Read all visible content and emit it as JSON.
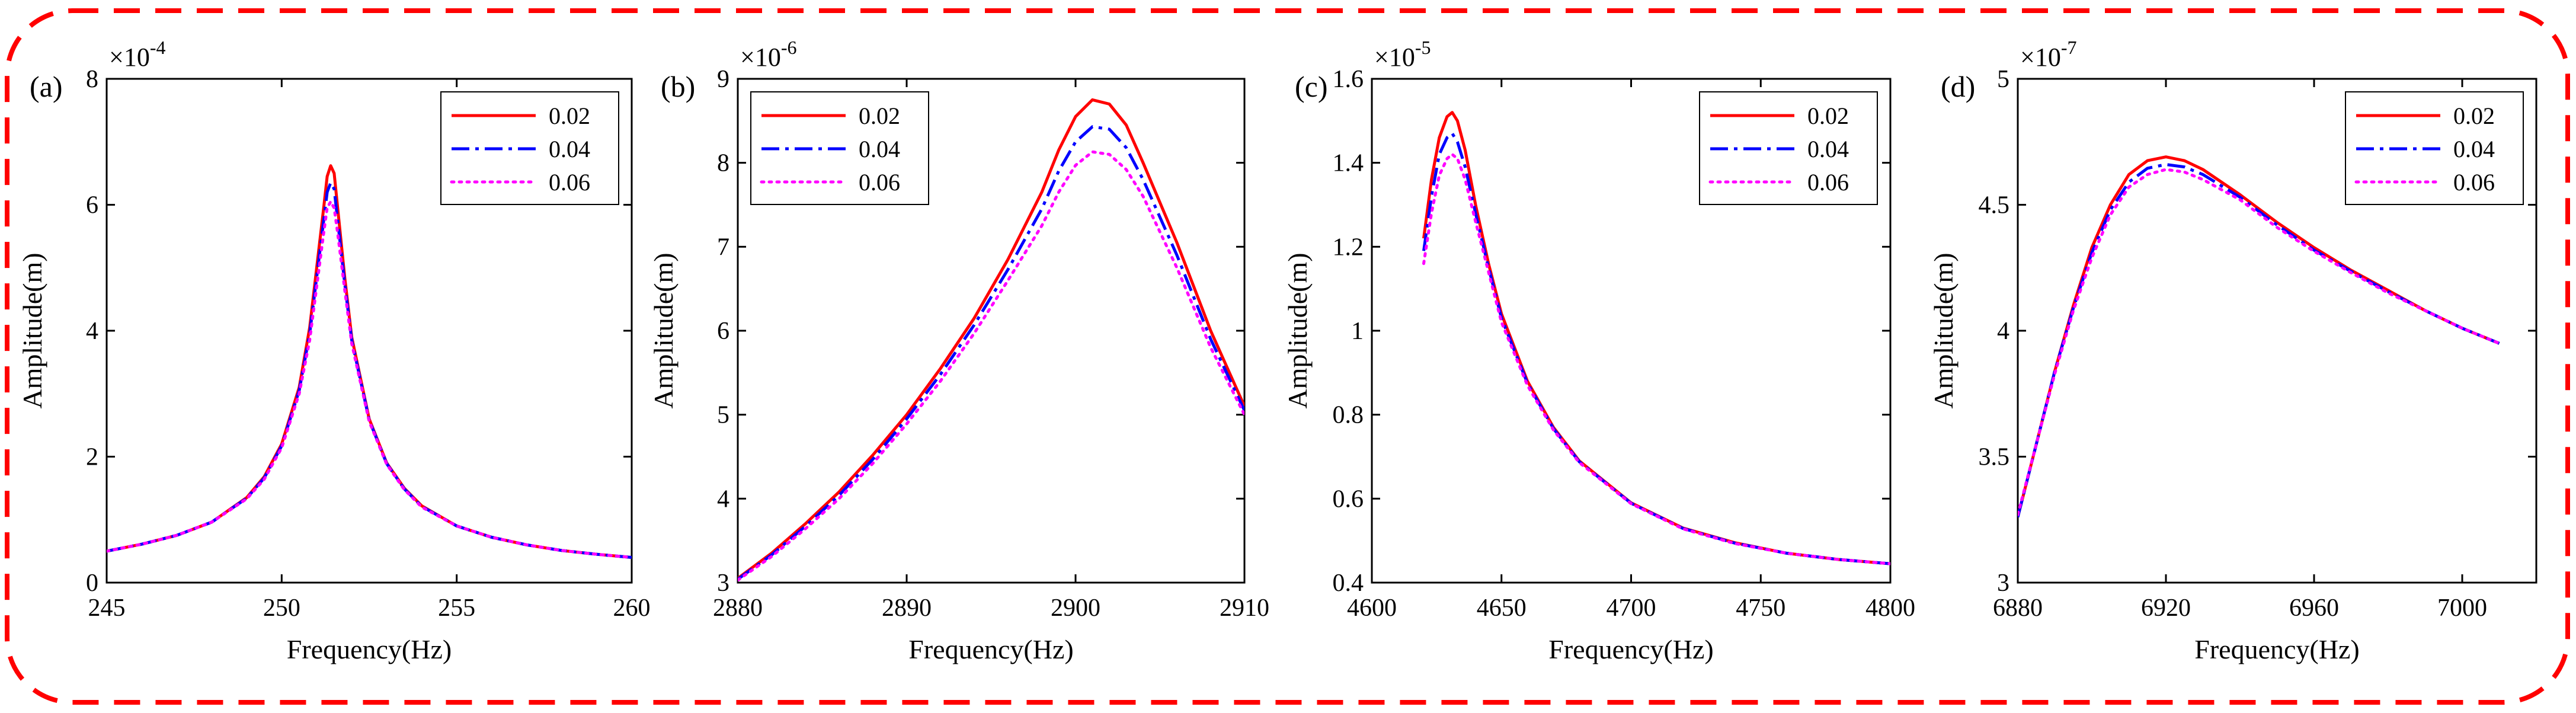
{
  "chart_data": [
    {
      "type": "line",
      "panel_label": "(a)",
      "xlabel": "Frequency(Hz)",
      "ylabel": "Amplitude(m)",
      "y_multiplier": "×10",
      "y_exponent": "-4",
      "xlim": [
        245,
        260
      ],
      "ylim": [
        0,
        8
      ],
      "xticks": [
        245,
        250,
        255,
        260
      ],
      "xtick_labels": [
        "245",
        "250",
        "255",
        "260"
      ],
      "yticks": [
        0,
        2,
        4,
        6,
        8
      ],
      "ytick_labels": [
        "0",
        "2",
        "4",
        "6",
        "8"
      ],
      "legend_position": "top-right",
      "series": [
        {
          "name": "0.02",
          "color": "#ff0000",
          "style": "solid",
          "x": [
            245,
            246,
            247,
            248,
            249,
            249.5,
            250,
            250.5,
            250.8,
            251,
            251.2,
            251.3,
            251.4,
            251.5,
            251.6,
            251.8,
            252,
            252.5,
            253,
            253.5,
            254,
            255,
            256,
            257,
            258,
            259,
            260
          ],
          "y": [
            0.5,
            0.61,
            0.75,
            0.96,
            1.35,
            1.68,
            2.2,
            3.1,
            4.05,
            5.0,
            5.95,
            6.45,
            6.62,
            6.5,
            5.95,
            4.85,
            3.9,
            2.6,
            1.9,
            1.5,
            1.22,
            0.9,
            0.72,
            0.6,
            0.51,
            0.45,
            0.4
          ]
        },
        {
          "name": "0.04",
          "color": "#0000ff",
          "style": "dashdot",
          "x": [
            245,
            246,
            247,
            248,
            249,
            249.5,
            250,
            250.5,
            250.8,
            251,
            251.2,
            251.3,
            251.4,
            251.5,
            251.6,
            251.8,
            252,
            252.5,
            253,
            253.5,
            254,
            255,
            256,
            257,
            258,
            259,
            260
          ],
          "y": [
            0.5,
            0.61,
            0.75,
            0.96,
            1.34,
            1.66,
            2.17,
            3.05,
            3.95,
            4.85,
            5.75,
            6.2,
            6.35,
            6.25,
            5.75,
            4.75,
            3.85,
            2.58,
            1.89,
            1.49,
            1.21,
            0.9,
            0.72,
            0.6,
            0.51,
            0.45,
            0.4
          ]
        },
        {
          "name": "0.06",
          "color": "#ff00ff",
          "style": "dotted",
          "x": [
            245,
            246,
            247,
            248,
            249,
            249.5,
            250,
            250.5,
            250.8,
            251,
            251.2,
            251.3,
            251.4,
            251.5,
            251.6,
            251.8,
            252,
            252.5,
            253,
            253.5,
            254,
            255,
            256,
            257,
            258,
            259,
            260
          ],
          "y": [
            0.5,
            0.61,
            0.75,
            0.96,
            1.33,
            1.64,
            2.14,
            3.0,
            3.85,
            4.7,
            5.55,
            5.95,
            6.05,
            5.95,
            5.55,
            4.65,
            3.8,
            2.56,
            1.88,
            1.48,
            1.2,
            0.9,
            0.72,
            0.6,
            0.51,
            0.45,
            0.4
          ]
        }
      ]
    },
    {
      "type": "line",
      "panel_label": "(b)",
      "xlabel": "Frequency(Hz)",
      "ylabel": "Amplitude(m)",
      "y_multiplier": "×10",
      "y_exponent": "-6",
      "xlim": [
        2880,
        2910
      ],
      "ylim": [
        3,
        9
      ],
      "xticks": [
        2880,
        2890,
        2900,
        2910
      ],
      "xtick_labels": [
        "2880",
        "2890",
        "2900",
        "2910"
      ],
      "yticks": [
        3,
        4,
        5,
        6,
        7,
        8,
        9
      ],
      "ytick_labels": [
        "3",
        "4",
        "5",
        "6",
        "7",
        "8",
        "9"
      ],
      "legend_position": "top-left",
      "series": [
        {
          "name": "0.02",
          "color": "#ff0000",
          "style": "solid",
          "x": [
            2880,
            2882,
            2884,
            2886,
            2888,
            2890,
            2892,
            2894,
            2896,
            2898,
            2899,
            2900,
            2901,
            2902,
            2903,
            2904,
            2906,
            2908,
            2910
          ],
          "y": [
            3.05,
            3.35,
            3.7,
            4.08,
            4.52,
            5.0,
            5.55,
            6.15,
            6.85,
            7.65,
            8.15,
            8.55,
            8.75,
            8.7,
            8.45,
            8.0,
            7.05,
            6.0,
            5.1
          ]
        },
        {
          "name": "0.04",
          "color": "#0000ff",
          "style": "dashdot",
          "x": [
            2880,
            2882,
            2884,
            2886,
            2888,
            2890,
            2892,
            2894,
            2896,
            2898,
            2899,
            2900,
            2901,
            2902,
            2903,
            2904,
            2906,
            2908,
            2910
          ],
          "y": [
            3.04,
            3.33,
            3.67,
            4.04,
            4.47,
            4.95,
            5.48,
            6.07,
            6.73,
            7.45,
            7.9,
            8.25,
            8.43,
            8.4,
            8.18,
            7.8,
            6.9,
            5.9,
            5.05
          ]
        },
        {
          "name": "0.06",
          "color": "#ff00ff",
          "style": "dotted",
          "x": [
            2880,
            2882,
            2884,
            2886,
            2888,
            2890,
            2892,
            2894,
            2896,
            2898,
            2899,
            2900,
            2901,
            2902,
            2903,
            2904,
            2906,
            2908,
            2910
          ],
          "y": [
            3.03,
            3.31,
            3.64,
            4.0,
            4.42,
            4.89,
            5.4,
            5.97,
            6.6,
            7.25,
            7.65,
            7.97,
            8.13,
            8.1,
            7.92,
            7.6,
            6.75,
            5.8,
            5.0
          ]
        }
      ]
    },
    {
      "type": "line",
      "panel_label": "(c)",
      "xlabel": "Frequency(Hz)",
      "ylabel": "Amplitude(m)",
      "y_multiplier": "×10",
      "y_exponent": "-5",
      "xlim": [
        4600,
        4800
      ],
      "ylim": [
        0.4,
        1.6
      ],
      "xticks": [
        4600,
        4650,
        4700,
        4750,
        4800
      ],
      "xtick_labels": [
        "4600",
        "4650",
        "4700",
        "4750",
        "4800"
      ],
      "yticks": [
        0.4,
        0.6,
        0.8,
        1,
        1.2,
        1.4,
        1.6
      ],
      "ytick_labels": [
        "0.4",
        "0.6",
        "0.8",
        "1",
        "1.2",
        "1.4",
        "1.6"
      ],
      "legend_position": "top-right",
      "series": [
        {
          "name": "0.02",
          "color": "#ff0000",
          "style": "solid",
          "x": [
            4620,
            4623,
            4626,
            4629,
            4631,
            4633,
            4636,
            4640,
            4645,
            4650,
            4660,
            4670,
            4680,
            4700,
            4720,
            4740,
            4760,
            4780,
            4800
          ],
          "y": [
            1.22,
            1.36,
            1.46,
            1.51,
            1.52,
            1.5,
            1.43,
            1.3,
            1.16,
            1.04,
            0.88,
            0.77,
            0.69,
            0.59,
            0.53,
            0.495,
            0.47,
            0.455,
            0.445
          ]
        },
        {
          "name": "0.04",
          "color": "#0000ff",
          "style": "dashdot",
          "x": [
            4620,
            4623,
            4626,
            4629,
            4631,
            4633,
            4636,
            4640,
            4645,
            4650,
            4660,
            4670,
            4680,
            4700,
            4720,
            4740,
            4760,
            4780,
            4800
          ],
          "y": [
            1.19,
            1.32,
            1.42,
            1.46,
            1.47,
            1.45,
            1.39,
            1.28,
            1.15,
            1.03,
            0.875,
            0.767,
            0.688,
            0.589,
            0.529,
            0.494,
            0.47,
            0.455,
            0.445
          ]
        },
        {
          "name": "0.06",
          "color": "#ff00ff",
          "style": "dotted",
          "x": [
            4620,
            4623,
            4626,
            4629,
            4631,
            4633,
            4636,
            4640,
            4645,
            4650,
            4660,
            4670,
            4680,
            4700,
            4720,
            4740,
            4760,
            4780,
            4800
          ],
          "y": [
            1.16,
            1.28,
            1.37,
            1.41,
            1.42,
            1.41,
            1.36,
            1.26,
            1.14,
            1.02,
            0.87,
            0.764,
            0.686,
            0.588,
            0.528,
            0.493,
            0.47,
            0.455,
            0.445
          ]
        }
      ]
    },
    {
      "type": "line",
      "panel_label": "(d)",
      "xlabel": "Frequency(Hz)",
      "ylabel": "Amplitude(m)",
      "y_multiplier": "×10",
      "y_exponent": "-7",
      "xlim": [
        6880,
        7020
      ],
      "ylim": [
        3,
        5
      ],
      "xticks": [
        6880,
        6920,
        6960,
        7000
      ],
      "xtick_labels": [
        "6880",
        "6920",
        "6960",
        "7000"
      ],
      "yticks": [
        3,
        3.5,
        4,
        4.5,
        5
      ],
      "ytick_labels": [
        "3",
        "3.5",
        "4",
        "4.5",
        "5"
      ],
      "legend_position": "top-right",
      "series": [
        {
          "name": "0.02",
          "color": "#ff0000",
          "style": "solid",
          "x": [
            6880,
            6885,
            6890,
            6895,
            6900,
            6905,
            6910,
            6915,
            6920,
            6925,
            6930,
            6940,
            6950,
            6960,
            6970,
            6980,
            6990,
            7000,
            7010
          ],
          "y": [
            3.26,
            3.55,
            3.84,
            4.1,
            4.33,
            4.5,
            4.62,
            4.675,
            4.69,
            4.675,
            4.64,
            4.54,
            4.43,
            4.33,
            4.24,
            4.16,
            4.08,
            4.01,
            3.95
          ]
        },
        {
          "name": "0.04",
          "color": "#0000ff",
          "style": "dashdot",
          "x": [
            6880,
            6885,
            6890,
            6895,
            6900,
            6905,
            6910,
            6915,
            6920,
            6925,
            6930,
            6940,
            6950,
            6960,
            6970,
            6980,
            6990,
            7000,
            7010
          ],
          "y": [
            3.26,
            3.55,
            3.84,
            4.09,
            4.31,
            4.48,
            4.59,
            4.645,
            4.66,
            4.65,
            4.62,
            4.53,
            4.42,
            4.32,
            4.235,
            4.155,
            4.08,
            4.01,
            3.95
          ]
        },
        {
          "name": "0.06",
          "color": "#ff00ff",
          "style": "dotted",
          "x": [
            6880,
            6885,
            6890,
            6895,
            6900,
            6905,
            6910,
            6915,
            6920,
            6925,
            6930,
            6940,
            6950,
            6960,
            6970,
            6980,
            6990,
            7000,
            7010
          ],
          "y": [
            3.27,
            3.55,
            3.83,
            4.08,
            4.29,
            4.46,
            4.57,
            4.62,
            4.64,
            4.63,
            4.6,
            4.52,
            4.41,
            4.315,
            4.23,
            4.15,
            4.08,
            4.01,
            3.95
          ]
        }
      ]
    }
  ]
}
